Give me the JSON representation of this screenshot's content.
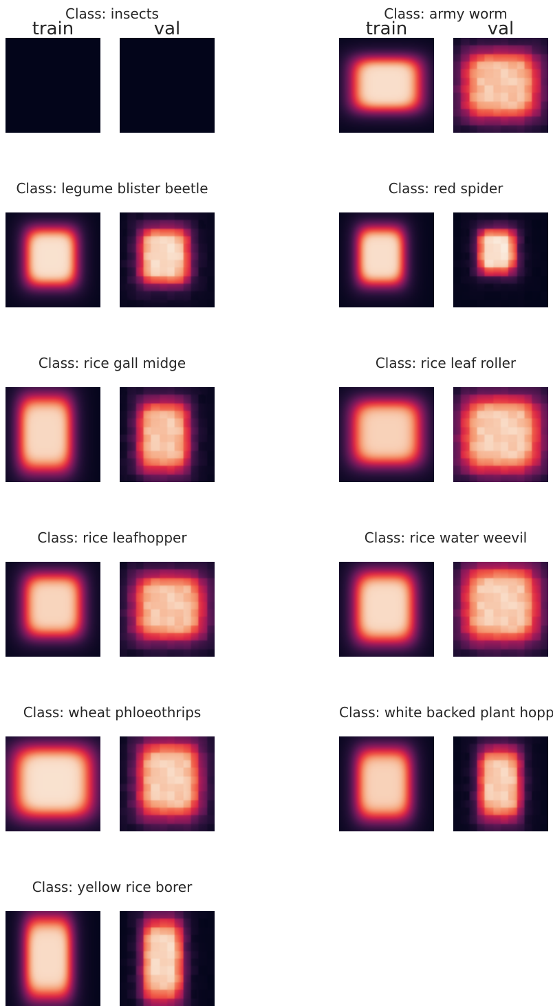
{
  "chart_data": {
    "type": "heatmap",
    "colormap": "rocket",
    "column_labels": [
      "train",
      "val"
    ],
    "classes": [
      {
        "title": "Class: insects",
        "train": {
          "cx": 0.5,
          "cy": 0.5,
          "rx": 0.3,
          "ry": 0.3,
          "peak": 0.0,
          "blocky": false
        },
        "val": {
          "cx": 0.5,
          "cy": 0.5,
          "rx": 0.3,
          "ry": 0.3,
          "peak": 0.0,
          "blocky": false
        }
      },
      {
        "title": "Class: army worm",
        "train": {
          "cx": 0.5,
          "cy": 0.49,
          "rx": 0.44,
          "ry": 0.34,
          "peak": 0.96,
          "blocky": false
        },
        "val": {
          "cx": 0.5,
          "cy": 0.5,
          "rx": 0.48,
          "ry": 0.43,
          "peak": 0.9,
          "blocky": true
        }
      },
      {
        "title": "Class: legume blister beetle",
        "train": {
          "cx": 0.48,
          "cy": 0.47,
          "rx": 0.33,
          "ry": 0.37,
          "peak": 0.97,
          "blocky": false
        },
        "val": {
          "cx": 0.47,
          "cy": 0.46,
          "rx": 0.32,
          "ry": 0.36,
          "peak": 0.95,
          "blocky": true
        }
      },
      {
        "title": "Class: red spider",
        "train": {
          "cx": 0.44,
          "cy": 0.46,
          "rx": 0.3,
          "ry": 0.37,
          "peak": 0.96,
          "blocky": false
        },
        "val": {
          "cx": 0.46,
          "cy": 0.41,
          "rx": 0.24,
          "ry": 0.28,
          "peak": 0.98,
          "blocky": true
        }
      },
      {
        "title": "Class: rice gall midge",
        "train": {
          "cx": 0.42,
          "cy": 0.49,
          "rx": 0.34,
          "ry": 0.48,
          "peak": 0.94,
          "blocky": false
        },
        "val": {
          "cx": 0.46,
          "cy": 0.52,
          "rx": 0.33,
          "ry": 0.45,
          "peak": 0.9,
          "blocky": true
        }
      },
      {
        "title": "Class: rice leaf roller",
        "train": {
          "cx": 0.5,
          "cy": 0.48,
          "rx": 0.44,
          "ry": 0.41,
          "peak": 0.92,
          "blocky": false
        },
        "val": {
          "cx": 0.5,
          "cy": 0.5,
          "rx": 0.5,
          "ry": 0.48,
          "peak": 0.92,
          "blocky": true
        }
      },
      {
        "title": "Class: rice leafhopper",
        "train": {
          "cx": 0.5,
          "cy": 0.46,
          "rx": 0.37,
          "ry": 0.4,
          "peak": 0.93,
          "blocky": false
        },
        "val": {
          "cx": 0.52,
          "cy": 0.48,
          "rx": 0.45,
          "ry": 0.42,
          "peak": 0.9,
          "blocky": true
        }
      },
      {
        "title": "Class: rice water weevil",
        "train": {
          "cx": 0.48,
          "cy": 0.48,
          "rx": 0.38,
          "ry": 0.45,
          "peak": 0.95,
          "blocky": false
        },
        "val": {
          "cx": 0.5,
          "cy": 0.45,
          "rx": 0.48,
          "ry": 0.48,
          "peak": 0.92,
          "blocky": true
        }
      },
      {
        "title": "Class: wheat phloeothrips",
        "train": {
          "cx": 0.5,
          "cy": 0.48,
          "rx": 0.5,
          "ry": 0.45,
          "peak": 0.97,
          "blocky": false
        },
        "val": {
          "cx": 0.52,
          "cy": 0.46,
          "rx": 0.4,
          "ry": 0.48,
          "peak": 0.92,
          "blocky": true
        }
      },
      {
        "title": "Class: white backed plant hopper",
        "train": {
          "cx": 0.47,
          "cy": 0.5,
          "rx": 0.35,
          "ry": 0.45,
          "peak": 0.92,
          "blocky": false
        },
        "val": {
          "cx": 0.49,
          "cy": 0.5,
          "rx": 0.27,
          "ry": 0.45,
          "peak": 0.92,
          "blocky": true
        }
      },
      {
        "title": "Class: yellow rice borer",
        "train": {
          "cx": 0.45,
          "cy": 0.49,
          "rx": 0.3,
          "ry": 0.52,
          "peak": 0.95,
          "blocky": false
        },
        "val": {
          "cx": 0.45,
          "cy": 0.52,
          "rx": 0.26,
          "ry": 0.52,
          "peak": 0.94,
          "blocky": true
        }
      }
    ]
  }
}
